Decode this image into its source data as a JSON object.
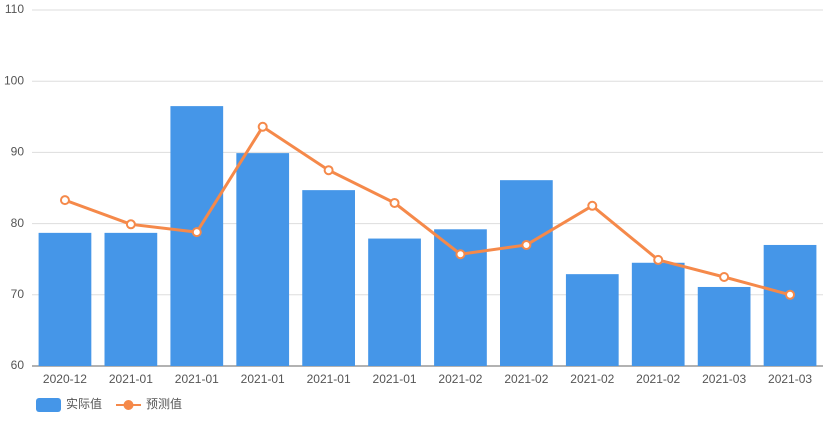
{
  "chart_data": {
    "type": "bar",
    "categories": [
      "2020-12",
      "2021-01",
      "2021-01",
      "2021-01",
      "2021-01",
      "2021-01",
      "2021-02",
      "2021-02",
      "2021-02",
      "2021-02",
      "2021-03",
      "2021-03"
    ],
    "series": [
      {
        "name": "实际值",
        "type": "bar",
        "color": "#4596e8",
        "values": [
          78.7,
          78.7,
          96.5,
          89.9,
          84.7,
          77.9,
          79.2,
          86.1,
          72.9,
          74.5,
          71.1,
          77.0
        ]
      },
      {
        "name": "预测值",
        "type": "line",
        "color": "#f5894a",
        "values": [
          83.3,
          79.9,
          78.8,
          93.6,
          87.5,
          82.9,
          75.7,
          77.0,
          82.5,
          74.9,
          72.5,
          70.0
        ]
      }
    ],
    "ylim": [
      60,
      110
    ],
    "yticks": [
      60,
      70,
      80,
      90,
      100,
      110
    ],
    "grid": true,
    "legend": "bottom-left"
  }
}
